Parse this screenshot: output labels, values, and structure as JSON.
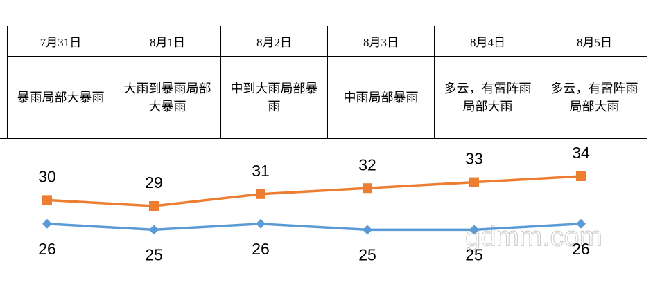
{
  "chart_data": {
    "type": "line",
    "categories": [
      "7月31日",
      "8月1日",
      "8月2日",
      "8月3日",
      "8月4日",
      "8月5日"
    ],
    "weather": [
      "暴雨局部大暴雨",
      "大雨到暴雨局部大暴雨",
      "中到大雨局部暴雨",
      "中雨局部暴雨",
      "多云，有雷阵雨局部大雨",
      "多云，有雷阵雨局部大雨"
    ],
    "series": [
      {
        "color": "#ed7d31",
        "marker": "square",
        "values": [
          30,
          29,
          31,
          32,
          33,
          34
        ]
      },
      {
        "color": "#5b9bd5",
        "marker": "diamond",
        "values": [
          26,
          25,
          26,
          25,
          25,
          26
        ]
      }
    ],
    "watermark": "gdmm.com"
  }
}
